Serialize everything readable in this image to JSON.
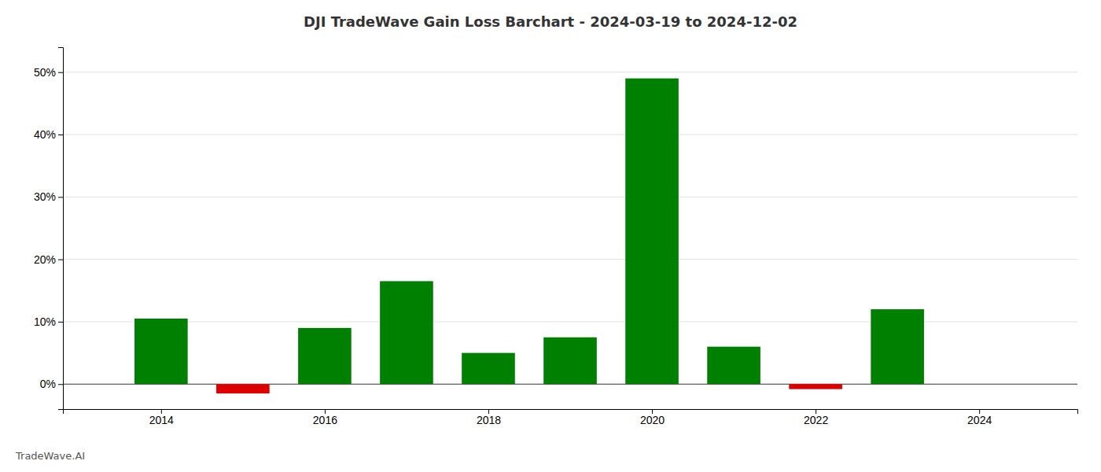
{
  "chart_data": {
    "type": "bar",
    "title": "DJI TradeWave Gain Loss Barchart - 2024-03-19 to 2024-12-02",
    "annotations": [
      "TradeWave.AI"
    ],
    "x": [
      2014,
      2015,
      2016,
      2017,
      2018,
      2019,
      2020,
      2021,
      2022,
      2023
    ],
    "values": [
      0.105,
      -0.015,
      0.09,
      0.165,
      0.05,
      0.075,
      0.49,
      0.06,
      -0.008,
      0.12
    ],
    "colors": [
      "#008000",
      "#dd0000",
      "#008000",
      "#008000",
      "#008000",
      "#008000",
      "#008000",
      "#008000",
      "#dd0000",
      "#008000"
    ],
    "xlim": [
      2012.8,
      2025.2
    ],
    "xticks": [
      2014,
      2016,
      2018,
      2020,
      2022,
      2024
    ],
    "ylim": [
      -0.04,
      0.54
    ],
    "yticks": [
      {
        "value": 0.0,
        "label": "0%"
      },
      {
        "value": 0.1,
        "label": "10%"
      },
      {
        "value": 0.2,
        "label": "20%"
      },
      {
        "value": 0.3,
        "label": "30%"
      },
      {
        "value": 0.4,
        "label": "40%"
      },
      {
        "value": 0.5,
        "label": "50%"
      }
    ],
    "grid": true
  }
}
